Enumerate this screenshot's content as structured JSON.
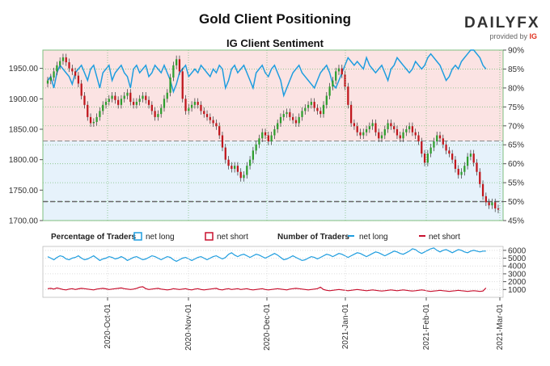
{
  "header": {
    "title": "Gold Client Positioning",
    "subtitle": "IG Client Sentiment",
    "brand": "DAILYFX",
    "brand_sub": "provided by",
    "brand_sub_mark": "IG"
  },
  "colors": {
    "net_long": "#1e9ddf",
    "net_short": "#c8102e",
    "bull": "#2e9e2e",
    "bear": "#c0161c",
    "upper_bg": "#fbe3e3",
    "lower_bg": "#e6f2fb",
    "grid": "#7fbf7f"
  },
  "legend": {
    "pct_title": "Percentage of Traders",
    "pct_long": "net long",
    "pct_short": "net short",
    "num_title": "Number of Traders",
    "num_long": "net long",
    "num_short": "net short"
  },
  "chart_data": {
    "type": "candlestick+line",
    "price_axis": {
      "ticks": [
        "1700.00",
        "1750.00",
        "1800.00",
        "1850.00",
        "1900.00",
        "1950.00"
      ],
      "ylim": [
        1700,
        1980
      ]
    },
    "pct_axis": {
      "ticks": [
        "45%",
        "50%",
        "55%",
        "60%",
        "65%",
        "70%",
        "75%",
        "80%",
        "85%",
        "90%"
      ],
      "ylim": [
        45,
        90
      ]
    },
    "count_axis": {
      "ticks": [
        "1000",
        "2000",
        "3000",
        "4000",
        "5000",
        "6000"
      ],
      "ylim": [
        0,
        6500
      ]
    },
    "x_ticks": [
      "2020-Oct-01",
      "2020-Nov-01",
      "2020-Dec-01",
      "2021-Jan-01",
      "2021-Feb-01",
      "2021-Mar-01"
    ],
    "reference_lines": {
      "pct_50": 50,
      "pct_66": 66
    },
    "gold_close": [
      1930,
      1935,
      1945,
      1955,
      1962,
      1968,
      1960,
      1950,
      1945,
      1938,
      1925,
      1905,
      1890,
      1870,
      1860,
      1862,
      1870,
      1880,
      1890,
      1895,
      1900,
      1905,
      1898,
      1890,
      1900,
      1905,
      1910,
      1895,
      1890,
      1895,
      1900,
      1905,
      1898,
      1890,
      1880,
      1870,
      1875,
      1885,
      1900,
      1910,
      1935,
      1955,
      1965,
      1945,
      1900,
      1880,
      1885,
      1890,
      1895,
      1890,
      1880,
      1875,
      1870,
      1865,
      1860,
      1855,
      1840,
      1820,
      1800,
      1790,
      1785,
      1790,
      1780,
      1770,
      1775,
      1790,
      1800,
      1815,
      1825,
      1835,
      1845,
      1840,
      1830,
      1840,
      1850,
      1860,
      1870,
      1875,
      1878,
      1870,
      1865,
      1860,
      1870,
      1880,
      1885,
      1890,
      1895,
      1885,
      1880,
      1875,
      1890,
      1905,
      1920,
      1930,
      1945,
      1950,
      1940,
      1920,
      1890,
      1860,
      1855,
      1845,
      1840,
      1845,
      1850,
      1855,
      1860,
      1845,
      1835,
      1840,
      1850,
      1860,
      1855,
      1850,
      1840,
      1835,
      1845,
      1850,
      1855,
      1845,
      1840,
      1830,
      1810,
      1795,
      1810,
      1820,
      1830,
      1840,
      1835,
      1825,
      1815,
      1810,
      1800,
      1785,
      1775,
      1780,
      1790,
      1805,
      1810,
      1795,
      1780,
      1760,
      1740,
      1730,
      1725,
      1730,
      1720,
      1718
    ],
    "net_long_pct": [
      82,
      83,
      80,
      84,
      86,
      85,
      84,
      83,
      81,
      84,
      85,
      86,
      84,
      82,
      85,
      86,
      83,
      80,
      84,
      85,
      86,
      82,
      84,
      85,
      86,
      84,
      83,
      80,
      85,
      86,
      84,
      85,
      86,
      83,
      84,
      86,
      85,
      84,
      86,
      84,
      82,
      79,
      81,
      84,
      85,
      86,
      83,
      84,
      85,
      84,
      86,
      85,
      84,
      83,
      85,
      84,
      86,
      85,
      80,
      82,
      85,
      86,
      84,
      85,
      86,
      84,
      82,
      80,
      84,
      85,
      86,
      84,
      83,
      85,
      86,
      84,
      82,
      78,
      80,
      82,
      84,
      85,
      86,
      84,
      83,
      82,
      81,
      80,
      82,
      84,
      85,
      86,
      84,
      81,
      80,
      82,
      84,
      86,
      88,
      87,
      86,
      87,
      86,
      85,
      88,
      86,
      85,
      84,
      85,
      86,
      84,
      82,
      85,
      86,
      88,
      87,
      86,
      85,
      84,
      85,
      87,
      86,
      85,
      86,
      88,
      89,
      88,
      87,
      86,
      84,
      82,
      83,
      85,
      86,
      85,
      87,
      88,
      89,
      90,
      90,
      89,
      88,
      86,
      85
    ],
    "net_long_count": [
      5200,
      5000,
      4800,
      5100,
      5300,
      5200,
      4900,
      4800,
      5000,
      5100,
      5300,
      5000,
      4800,
      4900,
      5100,
      5300,
      5000,
      4700,
      4900,
      5000,
      5200,
      5100,
      4900,
      5000,
      5200,
      5000,
      4700,
      4900,
      5100,
      5200,
      5000,
      4800,
      4900,
      5100,
      5300,
      5200,
      5000,
      4800,
      5000,
      5200,
      5100,
      4800,
      4600,
      4800,
      5000,
      5100,
      4900,
      4700,
      4900,
      5100,
      5200,
      5000,
      4800,
      5000,
      5200,
      5300,
      5100,
      4900,
      5100,
      5500,
      5700,
      5400,
      5200,
      5400,
      5500,
      5300,
      5100,
      5300,
      5500,
      5400,
      5200,
      5000,
      5200,
      5400,
      5600,
      5400,
      5100,
      4800,
      4900,
      5100,
      5300,
      5100,
      4900,
      4700,
      4800,
      5000,
      5200,
      5100,
      4900,
      5100,
      5300,
      5500,
      5400,
      5200,
      5400,
      5600,
      5500,
      5300,
      5100,
      5300,
      5500,
      5700,
      5600,
      5400,
      5200,
      5400,
      5600,
      5800,
      5700,
      5500,
      5300,
      5500,
      5700,
      5900,
      5800,
      5600,
      5500,
      5700,
      5900,
      6200,
      6100,
      5800,
      5600,
      5800,
      6000,
      6200,
      6300,
      6000,
      5800,
      6000,
      6100,
      5900,
      5700,
      5900,
      6100,
      6000,
      5800,
      5700,
      5900,
      6000,
      5900,
      5800,
      5900,
      5900
    ],
    "net_short_count": [
      1100,
      1150,
      1050,
      1200,
      1100,
      1000,
      950,
      1050,
      1100,
      1000,
      1080,
      1150,
      1100,
      1050,
      1000,
      950,
      1050,
      1100,
      1150,
      1080,
      1000,
      1050,
      1100,
      1150,
      1200,
      1100,
      1050,
      1000,
      1050,
      1150,
      1300,
      1350,
      1100,
      1000,
      1050,
      1100,
      1150,
      1050,
      1000,
      950,
      1000,
      1100,
      1050,
      1000,
      1050,
      1100,
      1000,
      950,
      1050,
      1100,
      1000,
      950,
      1000,
      1050,
      1100,
      1150,
      1000,
      950,
      1050,
      1100,
      1000,
      1050,
      1100,
      1000,
      1050,
      1100,
      1000,
      950,
      1000,
      1050,
      1100,
      1000,
      950,
      1000,
      1050,
      1100,
      1050,
      1000,
      950,
      1050,
      1100,
      1150,
      1100,
      1050,
      1000,
      950,
      1000,
      1050,
      1100,
      1300,
      1000,
      900,
      850,
      900,
      950,
      1000,
      950,
      900,
      850,
      900,
      950,
      1000,
      950,
      900,
      850,
      900,
      950,
      900,
      850,
      800,
      850,
      900,
      950,
      900,
      850,
      900,
      950,
      900,
      850,
      800,
      850,
      900,
      950,
      900,
      800,
      750,
      800,
      850,
      900,
      850,
      800,
      750,
      800,
      850,
      900,
      850,
      800,
      750,
      800,
      850,
      800,
      750,
      800,
      1200
    ]
  }
}
